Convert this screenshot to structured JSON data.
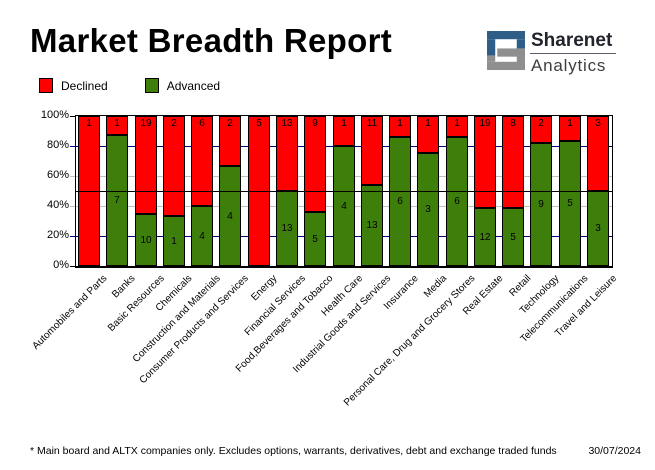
{
  "header": {
    "title": "Market Breadth Report",
    "brand": {
      "name": "Sharenet",
      "sub": "Analytics",
      "logo_blue": "#2E5E87",
      "logo_gray": "#8F8F8F"
    }
  },
  "legend": {
    "items": [
      {
        "label": "Declined",
        "color": "#FF0000"
      },
      {
        "label": "Advanced",
        "color": "#3E7F0C"
      }
    ]
  },
  "chart_data": {
    "type": "bar",
    "stacked": true,
    "unit": "percent_of_category_total",
    "title": "Market Breadth Report",
    "categories": [
      "Automobiles and Parts",
      "Banks",
      "Basic Resources",
      "Chemicals",
      "Construction and Materials",
      "Consumer Products and Services",
      "Energy",
      "Financial Services",
      "Food,Beverages and Tobacco",
      "Health Care",
      "Industrial Goods and Services",
      "Insurance",
      "Media",
      "Personal Care, Drug and Grocery Stores",
      "Real Estate",
      "Retail",
      "Technology",
      "Telecommunications",
      "Travel and Leisure"
    ],
    "series": [
      {
        "name": "Declined",
        "color": "#FF0000",
        "values": [
          1,
          1,
          19,
          2,
          6,
          2,
          5,
          13,
          9,
          1,
          11,
          1,
          1,
          1,
          19,
          8,
          2,
          1,
          3
        ]
      },
      {
        "name": "Advanced",
        "color": "#3E7F0C",
        "values": [
          0,
          7,
          10,
          1,
          4,
          4,
          0,
          13,
          5,
          4,
          13,
          6,
          3,
          6,
          12,
          5,
          9,
          5,
          3
        ]
      }
    ],
    "ylim": [
      0,
      100
    ],
    "yticks": [
      "100%",
      "80%",
      "60%",
      "40%",
      "20%",
      "0%"
    ],
    "ytick_mark_colors": [
      "#000000",
      "#000080",
      "#C0C0C0",
      "#C0C0C0",
      "#000080",
      "#000000"
    ],
    "gridlines": {
      "navy_levels": [
        80,
        20
      ],
      "navy_color": "#000080",
      "silver_levels": [
        60,
        40
      ],
      "silver_color": "#C0C0C0",
      "half_level": 50,
      "half_color": "#000000"
    },
    "legend_position": "top-left",
    "bar_label_color": "#000000"
  },
  "footer": {
    "note": "* Main board and ALTX companies only. Excludes options, warrants, derivatives, debt and exchange traded funds",
    "date": "30/07/2024"
  }
}
